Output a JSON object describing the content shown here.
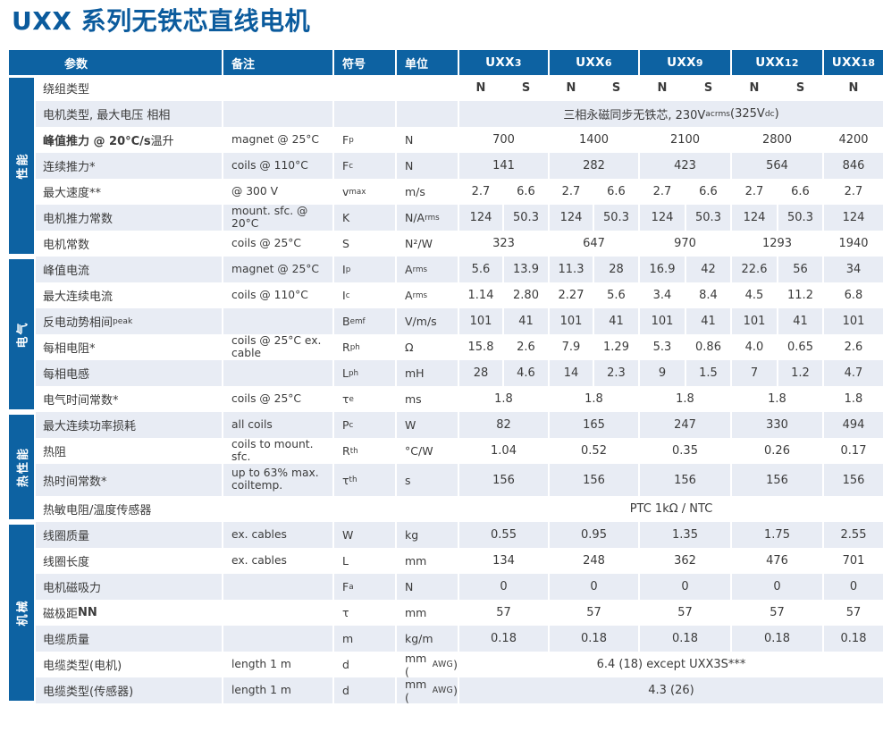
{
  "title": "UXX 系列无铁芯直线电机",
  "colors": {
    "brand_blue": "#0d62a2",
    "row_stripe": "#e8ecf4",
    "text": "#3b3b3b"
  },
  "table": {
    "column_headers": {
      "param": "参数",
      "note": "备注",
      "symbol": "符号",
      "unit": "单位"
    },
    "models": [
      "UXX3",
      "UXX6",
      "UXX9",
      "UXX12",
      "UXX18"
    ],
    "groups": [
      {
        "label": "性能",
        "first_row": 0,
        "row_count": 7
      },
      {
        "label": "电气",
        "first_row": 7,
        "row_count": 6
      },
      {
        "label": "热性能",
        "first_row": 13,
        "row_count": 4
      },
      {
        "label": "机械",
        "first_row": 17,
        "row_count": 7
      }
    ],
    "rows": [
      {
        "param": "绕组类型",
        "note": "",
        "symbol": "",
        "unit": "",
        "layout": "per_winding",
        "values_bold": true,
        "values": [
          "N",
          "S",
          "N",
          "S",
          "N",
          "S",
          "N",
          "S",
          "N"
        ]
      },
      {
        "param": "电机类型, 最大电压 相相",
        "note": "",
        "symbol": "",
        "unit": "",
        "layout": "all_models",
        "value": "三相永磁同步无铁芯, 230V_{acrms}(325V_{dc})"
      },
      {
        "param": "**峰值推力 @ 20°C/s** 温升",
        "note": "magnet @ 25°C",
        "symbol": "F_{p}",
        "unit": "N",
        "layout": "per_model",
        "values": [
          "700",
          "1400",
          "2100",
          "2800",
          "4200"
        ]
      },
      {
        "param": "连续推力*",
        "note": "coils @ 110°C",
        "symbol": "F_{c}",
        "unit": "N",
        "layout": "per_model",
        "values": [
          "141",
          "282",
          "423",
          "564",
          "846"
        ]
      },
      {
        "param": "最大速度**",
        "note": "@ 300 V",
        "symbol": "v_{max}",
        "unit": "m/s",
        "layout": "per_winding",
        "values": [
          "2.7",
          "6.6",
          "2.7",
          "6.6",
          "2.7",
          "6.6",
          "2.7",
          "6.6",
          "2.7"
        ]
      },
      {
        "param": "电机推力常数",
        "note": "mount. sfc. @ 20°C",
        "symbol": "K",
        "unit": "N/A_{rms}",
        "layout": "per_winding",
        "values": [
          "124",
          "50.3",
          "124",
          "50.3",
          "124",
          "50.3",
          "124",
          "50.3",
          "124"
        ]
      },
      {
        "param": "电机常数",
        "note": "coils @ 25°C",
        "symbol": "S",
        "unit": "N²/W",
        "layout": "per_model",
        "values": [
          "323",
          "647",
          "970",
          "1293",
          "1940"
        ]
      },
      {
        "param": "峰值电流",
        "note": "magnet @ 25°C",
        "symbol": "I_{p}",
        "unit": "A_{rms}",
        "layout": "per_winding",
        "values": [
          "5.6",
          "13.9",
          "11.3",
          "28",
          "16.9",
          "42",
          "22.6",
          "56",
          "34"
        ]
      },
      {
        "param": "最大连续电流",
        "note": "coils @ 110°C",
        "symbol": "I_{c}",
        "unit": "A_{rms}",
        "layout": "per_winding",
        "values": [
          "1.14",
          "2.80",
          "2.27",
          "5.6",
          "3.4",
          "8.4",
          "4.5",
          "11.2",
          "6.8"
        ]
      },
      {
        "param": "反电动势相间_{peak}",
        "note": "",
        "symbol": "B_{emf}",
        "unit": "V/m/s",
        "layout": "per_winding",
        "values": [
          "101",
          "41",
          "101",
          "41",
          "101",
          "41",
          "101",
          "41",
          "101"
        ]
      },
      {
        "param": "每相电阻*",
        "note": "coils @ 25°C ex. cable",
        "symbol": "R_{ph}",
        "unit": "Ω",
        "layout": "per_winding",
        "values": [
          "15.8",
          "2.6",
          "7.9",
          "1.29",
          "5.3",
          "0.86",
          "4.0",
          "0.65",
          "2.6"
        ]
      },
      {
        "param": "每相电感",
        "note": "",
        "symbol": "L_{ph}",
        "unit": "mH",
        "layout": "per_winding",
        "values": [
          "28",
          "4.6",
          "14",
          "2.3",
          "9",
          "1.5",
          "7",
          "1.2",
          "4.7"
        ]
      },
      {
        "param": "电气时间常数*",
        "note": "coils @ 25°C",
        "symbol": "τ_{e}",
        "unit": "ms",
        "layout": "per_model",
        "values": [
          "1.8",
          "1.8",
          "1.8",
          "1.8",
          "1.8"
        ]
      },
      {
        "param": "最大连续功率损耗",
        "note": "all coils",
        "symbol": "P_{c}",
        "unit": "W",
        "layout": "per_model",
        "values": [
          "82",
          "165",
          "247",
          "330",
          "494"
        ]
      },
      {
        "param": "热阻",
        "note": "coils to mount. sfc.",
        "symbol": "R_{th}",
        "unit": "°C/W",
        "layout": "per_model",
        "values": [
          "1.04",
          "0.52",
          "0.35",
          "0.26",
          "0.17"
        ]
      },
      {
        "param": "热时间常数*",
        "note": "up to 63% max. coiltemp.",
        "symbol": "τ_{th}",
        "unit": "s",
        "layout": "per_model",
        "tall": true,
        "values": [
          "156",
          "156",
          "156",
          "156",
          "156"
        ]
      },
      {
        "param": "热敏电阻/温度传感器",
        "note": "",
        "symbol": "",
        "unit": "",
        "layout": "all_models",
        "value": "PTC 1kΩ / NTC"
      },
      {
        "param": "线圈质量",
        "note": "ex. cables",
        "symbol": "W",
        "unit": "kg",
        "layout": "per_model",
        "values": [
          "0.55",
          "0.95",
          "1.35",
          "1.75",
          "2.55"
        ]
      },
      {
        "param": "线圈长度",
        "note": "ex. cables",
        "symbol": "L",
        "unit": "mm",
        "layout": "per_model",
        "values": [
          "134",
          "248",
          "362",
          "476",
          "701"
        ]
      },
      {
        "param": "电机磁吸力",
        "note": "",
        "symbol": "F_{a}",
        "unit": "N",
        "layout": "per_model",
        "values": [
          "0",
          "0",
          "0",
          "0",
          "0"
        ]
      },
      {
        "param": "磁极距 **NN**",
        "note": "",
        "symbol": "τ",
        "unit": "mm",
        "layout": "per_model",
        "values": [
          "57",
          "57",
          "57",
          "57",
          "57"
        ]
      },
      {
        "param": "电缆质量",
        "note": "",
        "symbol": "m",
        "unit": "kg/m",
        "layout": "per_model",
        "values": [
          "0.18",
          "0.18",
          "0.18",
          "0.18",
          "0.18"
        ]
      },
      {
        "param": "电缆类型(电机)",
        "note": "length 1 m",
        "symbol": "d",
        "unit": "mm (^{AWG})",
        "layout": "all_models",
        "value": "6.4 (18) except UXX3S***"
      },
      {
        "param": "电缆类型(传感器)",
        "note": "length 1 m",
        "symbol": "d",
        "unit": "mm (^{AWG})",
        "layout": "all_models",
        "value": "4.3 (26)"
      }
    ]
  }
}
